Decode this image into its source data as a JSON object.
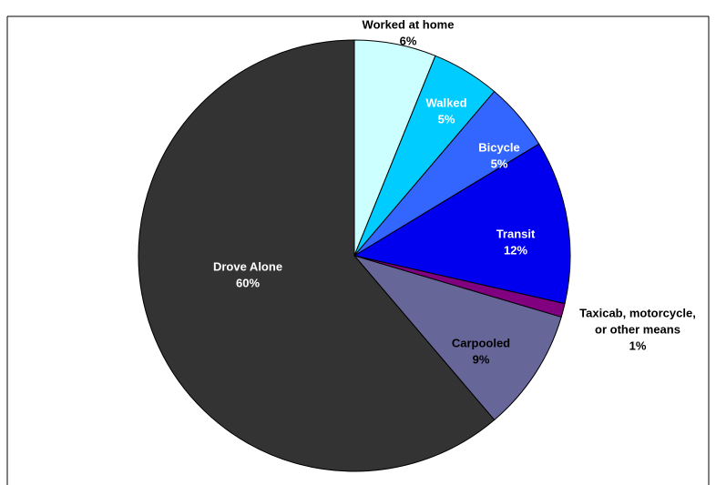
{
  "chart_data": {
    "type": "pie",
    "title": "",
    "slices": [
      {
        "label": "Worked at home",
        "value": 6,
        "value_label": "6%",
        "color": "#ccffff"
      },
      {
        "label": "Walked",
        "value": 5,
        "value_label": "5%",
        "color": "#00ccff"
      },
      {
        "label": "Bicycle",
        "value": 5,
        "value_label": "5%",
        "color": "#3366ff"
      },
      {
        "label": "Transit",
        "value": 12,
        "value_label": "12%",
        "color": "#0000ee"
      },
      {
        "label": "Taxicab, motorcycle, or other means",
        "value": 1,
        "value_label": "1%",
        "color": "#800080"
      },
      {
        "label": "Carpooled",
        "value": 9,
        "value_label": "9%",
        "color": "#666699"
      },
      {
        "label": "Drove Alone",
        "value": 60,
        "value_label": "60%",
        "color": "#333333"
      }
    ],
    "label_lines": {
      "Taxicab, motorcycle, or other means": [
        "Taxicab, motorcycle,",
        "or other means"
      ]
    },
    "slice_text_colors": {
      "Worked at home": "#000000",
      "Walked": "#ffffff",
      "Bicycle": "#ffffff",
      "Transit": "#ffffff",
      "Taxicab, motorcycle, or other means": "#000000",
      "Carpooled": "#000000",
      "Drove Alone": "#ffffff"
    }
  }
}
